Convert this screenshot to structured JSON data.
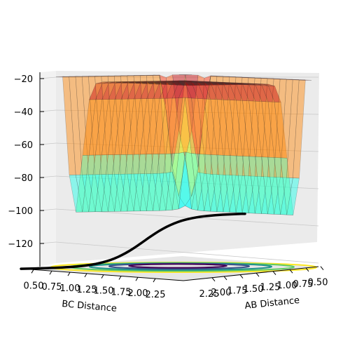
{
  "chart_data": {
    "type": "surface3d",
    "title": "",
    "xlabel": "BC Distance",
    "ylabel": "AB Distance",
    "zlabel": "",
    "x_ticks": [
      "0.50",
      "0.75",
      "1.00",
      "1.25",
      "1.50",
      "1.75",
      "2.00",
      "2.25"
    ],
    "y_ticks": [
      "0.50",
      "0.75",
      "1.00",
      "1.25",
      "1.50",
      "1.75",
      "2.00",
      "2.25"
    ],
    "z_ticks": [
      "−20",
      "−40",
      "−60",
      "−80",
      "−100",
      "−120"
    ],
    "xlim": [
      0.5,
      2.3
    ],
    "ylim": [
      0.5,
      2.3
    ],
    "zlim": [
      -135,
      -18
    ],
    "colormap": "jet",
    "grid": true,
    "surface_approx": {
      "x_contour_levels": [
        -120,
        -100,
        -80,
        -60,
        -40,
        -20
      ],
      "saddle_z": -40,
      "reactant_valley_z": -104,
      "product_valley_z": -104,
      "plateau_z": -20
    },
    "trajectory": {
      "color": "#000000",
      "z_start": -132,
      "z_end": -101
    },
    "floor_contour_colors": [
      "#fde725",
      "#5ec962",
      "#21918c",
      "#3b528b",
      "#440154"
    ]
  }
}
